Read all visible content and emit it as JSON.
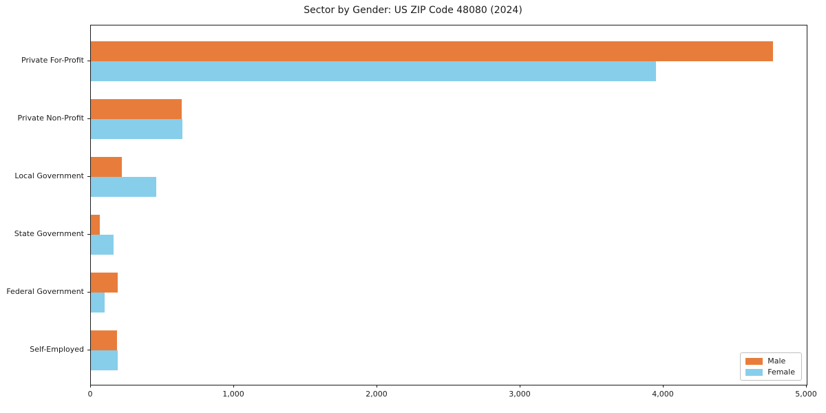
{
  "chart_data": {
    "type": "bar",
    "orientation": "horizontal",
    "title": "Sector by Gender: US ZIP Code 48080 (2024)",
    "categories": [
      "Private For-Profit",
      "Private Non-Profit",
      "Local Government",
      "State Government",
      "Federal Government",
      "Self-Employed"
    ],
    "series": [
      {
        "name": "Male",
        "color": "#e87d3b",
        "values": [
          4765,
          635,
          215,
          63,
          188,
          184
        ]
      },
      {
        "name": "Female",
        "color": "#87ceeb",
        "values": [
          3945,
          640,
          455,
          158,
          97,
          188
        ]
      }
    ],
    "xlabel": "",
    "ylabel": "",
    "xlim": [
      0,
      5000
    ],
    "x_ticks": [
      0,
      1000,
      2000,
      3000,
      4000,
      5000
    ],
    "x_tick_labels": [
      "0",
      "1,000",
      "2,000",
      "3,000",
      "4,000",
      "5,000"
    ],
    "legend_position": "lower right",
    "grid": false
  }
}
